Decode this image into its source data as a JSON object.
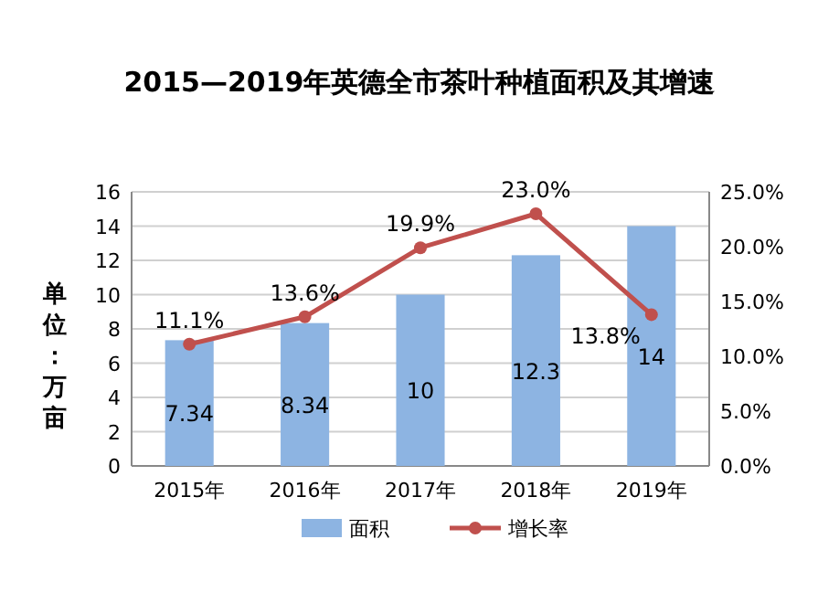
{
  "chart_data": {
    "type": "bar",
    "title": "2015—2019年英德全市茶叶种植面积及其增速",
    "ylabel": "单位：万亩",
    "categories": [
      "2015年",
      "2016年",
      "2017年",
      "2018年",
      "2019年"
    ],
    "series": [
      {
        "name": "面积",
        "color": "#8db4e2",
        "values": [
          7.34,
          8.34,
          10,
          12.3,
          14
        ],
        "value_labels": [
          "7.34",
          "8.34",
          "10",
          "12.3",
          "14"
        ]
      },
      {
        "name": "增长率",
        "type": "line",
        "axis": "y2",
        "color": "#c0504d",
        "values": [
          11.1,
          13.6,
          19.9,
          23.0,
          13.8
        ],
        "value_labels": [
          "11.1%",
          "13.6%",
          "19.9%",
          "23.0%",
          "13.8%"
        ],
        "marker": "circle",
        "line_style": "solid"
      }
    ],
    "ylim": [
      0,
      16
    ],
    "yticks": [
      0,
      2,
      4,
      6,
      8,
      10,
      12,
      14,
      16
    ],
    "y2lim": [
      0,
      25
    ],
    "y2ticks": [
      {
        "value": 0,
        "label": "0.0%"
      },
      {
        "value": 5,
        "label": "5.0%"
      },
      {
        "value": 10,
        "label": "10.0%"
      },
      {
        "value": 15,
        "label": "15.0%"
      },
      {
        "value": 20,
        "label": "20.0%"
      },
      {
        "value": 25,
        "label": "25.0%"
      }
    ],
    "grid": "y",
    "legend": "bottom"
  }
}
